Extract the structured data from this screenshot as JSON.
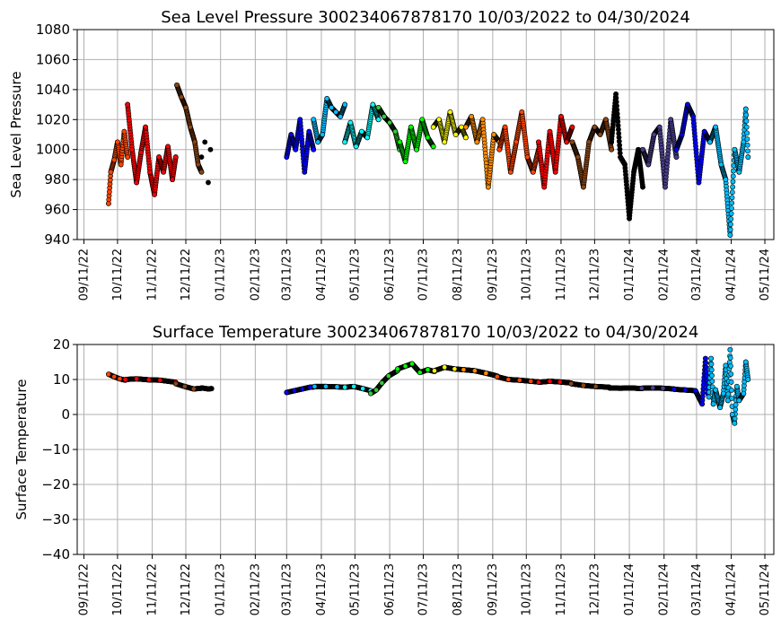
{
  "chart_data": [
    {
      "type": "scatter",
      "title": "Sea Level Pressure 300234067878170  10/03/2022 to 04/30/2024",
      "xlabel": "",
      "ylabel": "Sea Level Pressure",
      "ylim": [
        940,
        1080
      ],
      "yticks": [
        940,
        960,
        980,
        1000,
        1020,
        1040,
        1060,
        1080
      ],
      "xlim": [
        "2022-09-05",
        "2024-05-19"
      ],
      "xtick_labels": [
        "09/11/22",
        "10/11/22",
        "11/11/22",
        "12/11/22",
        "01/11/23",
        "02/11/23",
        "03/11/23",
        "04/11/23",
        "05/11/23",
        "06/11/23",
        "07/11/23",
        "08/11/23",
        "09/11/23",
        "10/11/23",
        "11/11/23",
        "12/11/23",
        "01/11/24",
        "02/11/24",
        "03/11/24",
        "04/11/24",
        "05/11/24"
      ],
      "grid": true,
      "series": [
        {
          "color": "#ff4500",
          "x": [
            "2022-10-03",
            "2022-10-05",
            "2022-10-08",
            "2022-10-11",
            "2022-10-14",
            "2022-10-17",
            "2022-10-20"
          ],
          "y": [
            964,
            985,
            993,
            1005,
            990,
            1012,
            995
          ]
        },
        {
          "color": "#ff0000",
          "x": [
            "2022-10-20",
            "2022-10-24",
            "2022-10-28",
            "2022-11-01",
            "2022-11-05",
            "2022-11-09",
            "2022-11-13",
            "2022-11-17",
            "2022-11-21",
            "2022-11-25",
            "2022-11-29",
            "2022-12-02"
          ],
          "y": [
            1030,
            1000,
            978,
            998,
            1015,
            985,
            970,
            995,
            985,
            1002,
            980,
            995
          ]
        },
        {
          "color": "#8b4513",
          "x": [
            "2022-12-03",
            "2022-12-07",
            "2022-12-11",
            "2022-12-15",
            "2022-12-19",
            "2022-12-22",
            "2022-12-25"
          ],
          "y": [
            1043,
            1035,
            1028,
            1015,
            1005,
            990,
            985
          ]
        },
        {
          "color": "#000000",
          "x": [
            "2022-12-25",
            "2022-12-28",
            "2022-12-31",
            "2023-01-02"
          ],
          "y": [
            995,
            1005,
            978,
            1000
          ]
        },
        {
          "color": "#0000ff",
          "x": [
            "2023-03-11",
            "2023-03-15",
            "2023-03-19",
            "2023-03-23",
            "2023-03-27",
            "2023-03-31",
            "2023-04-04"
          ],
          "y": [
            995,
            1010,
            1000,
            1020,
            985,
            1012,
            1000
          ]
        },
        {
          "color": "#00bfff",
          "x": [
            "2023-04-04",
            "2023-04-08",
            "2023-04-12",
            "2023-04-16",
            "2023-04-20",
            "2023-04-24",
            "2023-04-28",
            "2023-05-02"
          ],
          "y": [
            1020,
            1005,
            1010,
            1034,
            1028,
            1025,
            1022,
            1030
          ]
        },
        {
          "color": "#00ffff",
          "x": [
            "2023-05-02",
            "2023-05-07",
            "2023-05-12",
            "2023-05-17",
            "2023-05-22",
            "2023-05-27",
            "2023-06-01"
          ],
          "y": [
            1005,
            1018,
            1002,
            1012,
            1008,
            1030,
            1020
          ]
        },
        {
          "color": "#32cd32",
          "x": [
            "2023-06-01",
            "2023-06-06",
            "2023-06-11",
            "2023-06-16",
            "2023-06-20"
          ],
          "y": [
            1028,
            1022,
            1018,
            1012,
            1000
          ]
        },
        {
          "color": "#00ff00",
          "x": [
            "2023-06-20",
            "2023-06-25",
            "2023-06-30",
            "2023-07-05",
            "2023-07-10",
            "2023-07-15",
            "2023-07-20"
          ],
          "y": [
            1005,
            992,
            1015,
            1000,
            1020,
            1008,
            1002
          ]
        },
        {
          "color": "#ffff00",
          "x": [
            "2023-07-20",
            "2023-07-25",
            "2023-07-30",
            "2023-08-04",
            "2023-08-09",
            "2023-08-14",
            "2023-08-18"
          ],
          "y": [
            1015,
            1020,
            1005,
            1025,
            1010,
            1015,
            1008
          ]
        },
        {
          "color": "#ff8c00",
          "x": [
            "2023-08-18",
            "2023-08-23",
            "2023-08-28",
            "2023-09-02",
            "2023-09-07",
            "2023-09-12",
            "2023-09-17"
          ],
          "y": [
            1015,
            1022,
            1005,
            1020,
            975,
            1010,
            1005
          ]
        },
        {
          "color": "#ff4500",
          "x": [
            "2023-09-17",
            "2023-09-22",
            "2023-09-27",
            "2023-10-02",
            "2023-10-07",
            "2023-10-12",
            "2023-10-17",
            "2023-10-22"
          ],
          "y": [
            1000,
            1015,
            985,
            1005,
            1025,
            995,
            985,
            1000
          ]
        },
        {
          "color": "#ff0000",
          "x": [
            "2023-10-22",
            "2023-10-27",
            "2023-11-01",
            "2023-11-06",
            "2023-11-11",
            "2023-11-16",
            "2023-11-21"
          ],
          "y": [
            1005,
            975,
            1012,
            985,
            1022,
            1005,
            1015
          ]
        },
        {
          "color": "#8b4513",
          "x": [
            "2023-11-21",
            "2023-11-26",
            "2023-12-01",
            "2023-12-06",
            "2023-12-11",
            "2023-12-16",
            "2023-12-21",
            "2023-12-26"
          ],
          "y": [
            1005,
            995,
            975,
            1005,
            1015,
            1010,
            1020,
            1000
          ]
        },
        {
          "color": "#000000",
          "x": [
            "2023-12-26",
            "2023-12-30",
            "2024-01-03",
            "2024-01-07",
            "2024-01-11",
            "2024-01-15",
            "2024-01-19",
            "2024-01-23"
          ],
          "y": [
            1005,
            1037,
            995,
            990,
            954,
            985,
            1000,
            975
          ]
        },
        {
          "color": "#483d8b",
          "x": [
            "2024-01-23",
            "2024-01-28",
            "2024-02-02",
            "2024-02-07",
            "2024-02-12",
            "2024-02-17",
            "2024-02-22"
          ],
          "y": [
            1000,
            990,
            1010,
            1015,
            975,
            1020,
            995
          ]
        },
        {
          "color": "#0000ff",
          "x": [
            "2024-02-22",
            "2024-02-27",
            "2024-03-03",
            "2024-03-08",
            "2024-03-13",
            "2024-03-18",
            "2024-03-23"
          ],
          "y": [
            1000,
            1010,
            1030,
            1022,
            978,
            1012,
            1005
          ]
        },
        {
          "color": "#00bfff",
          "x": [
            "2024-03-23",
            "2024-03-28",
            "2024-04-02",
            "2024-04-06",
            "2024-04-10",
            "2024-04-14",
            "2024-04-18",
            "2024-04-22",
            "2024-04-24",
            "2024-04-26"
          ],
          "y": [
            1005,
            1015,
            990,
            980,
            943,
            1000,
            985,
            1005,
            1027,
            995
          ]
        }
      ]
    },
    {
      "type": "scatter",
      "title": "Surface Temperature 300234067878170  10/03/2022 to 04/30/2024",
      "xlabel": "",
      "ylabel": "Surface Temperature",
      "ylim": [
        -40,
        20
      ],
      "yticks": [
        -40,
        -30,
        -20,
        -10,
        0,
        10,
        20
      ],
      "xlim": [
        "2022-09-05",
        "2024-05-19"
      ],
      "xtick_labels": [
        "09/11/22",
        "10/11/22",
        "11/11/22",
        "12/11/22",
        "01/11/23",
        "02/11/23",
        "03/11/23",
        "04/11/23",
        "05/11/23",
        "06/11/23",
        "07/11/23",
        "08/11/23",
        "09/11/23",
        "10/11/23",
        "11/11/23",
        "12/11/23",
        "01/11/24",
        "02/11/24",
        "03/11/24",
        "04/11/24",
        "05/11/24"
      ],
      "grid": true,
      "series": [
        {
          "color": "#ff4500",
          "x": [
            "2022-10-03",
            "2022-10-08",
            "2022-10-13",
            "2022-10-18"
          ],
          "y": [
            11.5,
            10.8,
            10.2,
            9.8
          ]
        },
        {
          "color": "#ff0000",
          "x": [
            "2022-10-18",
            "2022-10-28",
            "2022-11-08",
            "2022-11-18",
            "2022-12-02"
          ],
          "y": [
            10.0,
            10.2,
            9.9,
            9.8,
            9.2
          ]
        },
        {
          "color": "#8b4513",
          "x": [
            "2022-12-02",
            "2022-12-10",
            "2022-12-18",
            "2022-12-25"
          ],
          "y": [
            8.8,
            8.0,
            7.3,
            7.5
          ]
        },
        {
          "color": "#000000",
          "x": [
            "2022-12-25",
            "2022-12-31",
            "2023-01-03"
          ],
          "y": [
            7.6,
            7.3,
            7.4
          ]
        },
        {
          "color": "#0000ff",
          "x": [
            "2023-03-11",
            "2023-03-18",
            "2023-03-25",
            "2023-04-01",
            "2023-04-05"
          ],
          "y": [
            6.3,
            6.8,
            7.3,
            7.8,
            7.9
          ]
        },
        {
          "color": "#00bfff",
          "x": [
            "2023-04-05",
            "2023-04-15",
            "2023-04-25",
            "2023-05-02"
          ],
          "y": [
            8.0,
            8.0,
            7.9,
            7.8
          ]
        },
        {
          "color": "#00ffff",
          "x": [
            "2023-05-02",
            "2023-05-10",
            "2023-05-18",
            "2023-05-25"
          ],
          "y": [
            7.8,
            8.0,
            7.4,
            6.8
          ]
        },
        {
          "color": "#32cd32",
          "x": [
            "2023-05-25",
            "2023-05-30",
            "2023-06-04",
            "2023-06-10",
            "2023-06-18"
          ],
          "y": [
            6.0,
            7.0,
            9.0,
            11.0,
            12.5
          ]
        },
        {
          "color": "#00ff00",
          "x": [
            "2023-06-18",
            "2023-06-25",
            "2023-07-01",
            "2023-07-08",
            "2023-07-15",
            "2023-07-21"
          ],
          "y": [
            13.0,
            13.8,
            14.5,
            12.0,
            12.8,
            12.3
          ]
        },
        {
          "color": "#ffff00",
          "x": [
            "2023-07-21",
            "2023-07-30",
            "2023-08-08",
            "2023-08-16"
          ],
          "y": [
            12.5,
            13.5,
            13.0,
            12.8
          ]
        },
        {
          "color": "#ff8c00",
          "x": [
            "2023-08-16",
            "2023-08-26",
            "2023-09-05",
            "2023-09-15"
          ],
          "y": [
            12.8,
            12.5,
            11.8,
            11.0
          ]
        },
        {
          "color": "#ff4500",
          "x": [
            "2023-09-15",
            "2023-09-25",
            "2023-10-05",
            "2023-10-15",
            "2023-10-22"
          ],
          "y": [
            10.8,
            10.0,
            9.8,
            9.5,
            9.3
          ]
        },
        {
          "color": "#ff0000",
          "x": [
            "2023-10-22",
            "2023-11-01",
            "2023-11-10",
            "2023-11-20"
          ],
          "y": [
            9.2,
            9.5,
            9.3,
            9.0
          ]
        },
        {
          "color": "#8b4513",
          "x": [
            "2023-11-20",
            "2023-12-01",
            "2023-12-12",
            "2023-12-24"
          ],
          "y": [
            8.8,
            8.3,
            8.0,
            7.8
          ]
        },
        {
          "color": "#000000",
          "x": [
            "2023-12-24",
            "2024-01-03",
            "2024-01-12",
            "2024-01-22"
          ],
          "y": [
            7.6,
            7.5,
            7.6,
            7.4
          ]
        },
        {
          "color": "#483d8b",
          "x": [
            "2024-01-22",
            "2024-02-01",
            "2024-02-10",
            "2024-02-20"
          ],
          "y": [
            7.5,
            7.6,
            7.5,
            7.3
          ]
        },
        {
          "color": "#0000ff",
          "x": [
            "2024-02-20",
            "2024-03-01",
            "2024-03-10",
            "2024-03-16",
            "2024-03-19",
            "2024-03-21"
          ],
          "y": [
            7.2,
            7.0,
            6.8,
            3.0,
            16.0,
            6.0
          ]
        },
        {
          "color": "#00bfff",
          "x": [
            "2024-03-22",
            "2024-03-24",
            "2024-03-26",
            "2024-03-28",
            "2024-04-01",
            "2024-04-04",
            "2024-04-06",
            "2024-04-08",
            "2024-04-10",
            "2024-04-12",
            "2024-04-14",
            "2024-04-16",
            "2024-04-18",
            "2024-04-22",
            "2024-04-24",
            "2024-04-26"
          ],
          "y": [
            5.0,
            16.0,
            3.0,
            7.0,
            2.0,
            6.0,
            14.0,
            4.0,
            18.5,
            0.0,
            -2.5,
            8.0,
            4.0,
            6.0,
            15.0,
            10.0
          ]
        }
      ]
    }
  ]
}
